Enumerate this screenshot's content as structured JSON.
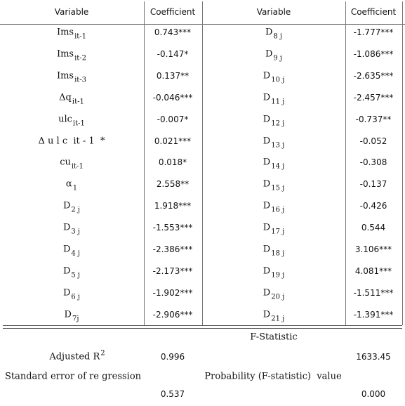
{
  "table": {
    "header": [
      "Variable",
      "Coefficient",
      "Variable",
      "Coefficient"
    ],
    "rows": [
      [
        {
          "main": "Ims",
          "sub": "it-1"
        },
        "0.743***",
        {
          "main": "D",
          "sub": "8 j"
        },
        "-1.777***"
      ],
      [
        {
          "main": "Ims",
          "sub": "it-2"
        },
        "-0.147*",
        {
          "main": "D",
          "sub": "9 j"
        },
        "-1.086***"
      ],
      [
        {
          "main": "Ims",
          "sub": "it-3"
        },
        "0.137**",
        {
          "main": "D",
          "sub": "10 j"
        },
        "-2.635***"
      ],
      [
        {
          "main": "Δq",
          "sub": "it-1"
        },
        "-0.046***",
        {
          "main": "D",
          "sub": "11 j"
        },
        "-2.457***"
      ],
      [
        {
          "main": "ulc",
          "sub": "it-1"
        },
        "-0.007*",
        {
          "main": "D",
          "sub": "12 j"
        },
        "-0.737**"
      ],
      [
        {
          "main": "Δ u l c  it - 1  *"
        },
        "0.021***",
        {
          "main": "D",
          "sub": "13 j"
        },
        "-0.052"
      ],
      [
        {
          "main": "cu",
          "sub": "it-1"
        },
        "0.018*",
        {
          "main": "D",
          "sub": "14 j"
        },
        "-0.308"
      ],
      [
        {
          "main": "α",
          "sub": "1"
        },
        "2.558**",
        {
          "main": "D",
          "sub": "15 j"
        },
        "-0.137"
      ],
      [
        {
          "main": "D",
          "sub": "2 j"
        },
        "1.918***",
        {
          "main": "D",
          "sub": "16 j"
        },
        "-0.426"
      ],
      [
        {
          "main": "D",
          "sub": "3 j"
        },
        "-1.553***",
        {
          "main": "D",
          "sub": "17 j"
        },
        "0.544"
      ],
      [
        {
          "main": "D",
          "sub": "4 j"
        },
        "-2.386***",
        {
          "main": "D",
          "sub": "18 j"
        },
        "3.106***"
      ],
      [
        {
          "main": "D",
          "sub": "5 j"
        },
        "-2.173***",
        {
          "main": "D",
          "sub": "19 j"
        },
        "4.081***"
      ],
      [
        {
          "main": "D",
          "sub": "6 j"
        },
        "-1.902***",
        {
          "main": "D",
          "sub": "20 j"
        },
        "-1.511***"
      ],
      [
        {
          "main": "D",
          "sub": "7j"
        },
        "-2.906***",
        {
          "main": "D",
          "sub": "21 j"
        },
        "-1.391***"
      ]
    ]
  },
  "footer": {
    "f_statistic_label": "F-Statistic",
    "adjusted_r2_label": {
      "main": "Adjusted R",
      "sup": "2"
    },
    "adjusted_r2_value": "0.996",
    "f_statistic_value": "1633.45",
    "se_label": "Standard error of re gression",
    "probability_label": "Probability (F-statistic)  value",
    "se_value": "0.537",
    "probability_value": "0.000"
  }
}
